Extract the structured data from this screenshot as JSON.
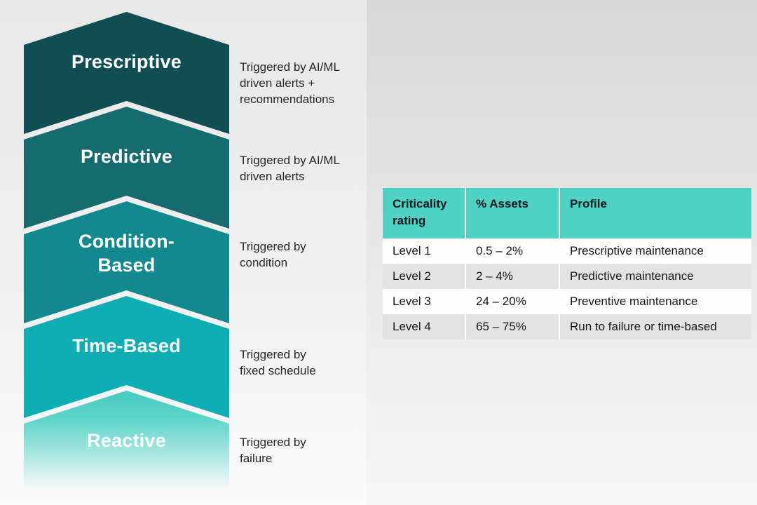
{
  "background": {
    "top_color": "#d8d8d8",
    "bottom_color": "#f7f7f7"
  },
  "maturity_pyramid": {
    "levels": [
      {
        "label": "Prescriptive",
        "description": "Triggered by AI/ML\ndriven alerts +\nrecommendations",
        "color": "#114e53"
      },
      {
        "label": "Predictive",
        "description": "Triggered by AI/ML\ndriven alerts",
        "color": "#166b6f"
      },
      {
        "label": "Condition-\nBased",
        "description": "Triggered by\ncondition",
        "color": "#12898d"
      },
      {
        "label": "Time-Based",
        "description": "Triggered by\nfixed schedule",
        "color": "#0fadb4"
      },
      {
        "label": "Reactive",
        "description": "Triggered by\nfailure",
        "color": "#46ccc2",
        "color_mid": "#5ed5c9",
        "fade": true
      }
    ]
  },
  "criticality_table": {
    "header_bg": "#4fd2c3",
    "row_bg_odd": "#fdfdfd",
    "row_bg_even": "#e3e3e3",
    "text_color": "#14181c",
    "columns": [
      "Criticality rating",
      "% Assets",
      "Profile"
    ],
    "rows": [
      [
        "Level 1",
        "0.5 – 2%",
        "Prescriptive maintenance"
      ],
      [
        "Level 2",
        "2 – 4%",
        "Predictive maintenance"
      ],
      [
        "Level 3",
        "24 – 20%",
        "Preventive maintenance"
      ],
      [
        "Level 4",
        "65 – 75%",
        "Run to failure or time-based"
      ]
    ]
  }
}
